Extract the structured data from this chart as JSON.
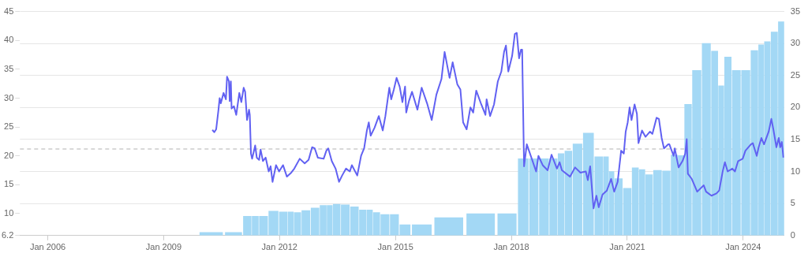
{
  "chart_data": {
    "type": "line",
    "xlim": [
      "2005-04-13",
      "2025-01-23"
    ],
    "xticks": [
      {
        "value": "2006-01-01",
        "label": "Jan 2006"
      },
      {
        "value": "2009-01-01",
        "label": "Jan 2009"
      },
      {
        "value": "2012-01-01",
        "label": "Jan 2012"
      },
      {
        "value": "2015-01-01",
        "label": "Jan 2015"
      },
      {
        "value": "2018-01-01",
        "label": "Jan 2018"
      },
      {
        "value": "2021-01-01",
        "label": "Jan 2021"
      },
      {
        "value": "2024-01-01",
        "label": "Jan 2024"
      }
    ],
    "ylim": [
      6.2,
      45
    ],
    "yticks": [
      6.2,
      10,
      15,
      20,
      25,
      30,
      35,
      40,
      45
    ],
    "y2lim": [
      0,
      35
    ],
    "y2ticks": [
      0,
      5,
      10,
      15,
      20,
      25,
      30,
      35
    ],
    "grid": "y",
    "marker": "none",
    "line_style": "solid",
    "ref_lines": [
      {
        "axis": "y",
        "value": 21.2,
        "color": "#cccccc",
        "line_style": "dashed"
      }
    ],
    "series": [
      {
        "type": "bar",
        "axis": "y2",
        "color": "#a3d8f5",
        "x": [
          "2010-03-26",
          "2010-11-26",
          "2011-03-15",
          "2011-05-12",
          "2011-07-28",
          "2011-11-04",
          "2012-02-14",
          "2012-04-17",
          "2012-06-11",
          "2012-09-06",
          "2012-12-03",
          "2013-02-25",
          "2013-04-17",
          "2013-06-18",
          "2013-09-14",
          "2013-12-10",
          "2014-03-04",
          "2014-05-05",
          "2014-06-29",
          "2014-09-21",
          "2014-12-25",
          "2015-03-19",
          "2015-08-04",
          "2016-05-05",
          "2017-04-02",
          "2017-12-25",
          "2018-05-05",
          "2018-07-28",
          "2018-11-07",
          "2019-02-10",
          "2019-04-17",
          "2019-06-18",
          "2019-09-14",
          "2019-12-28",
          "2020-04-21",
          "2020-06-22",
          "2020-07-28",
          "2020-10-05",
          "2021-01-05",
          "2021-03-22",
          "2021-05-20",
          "2021-07-21",
          "2021-10-13",
          "2022-01-08",
          "2022-03-26",
          "2022-05-23",
          "2022-07-24",
          "2022-10-16",
          "2023-01-23",
          "2023-04-13",
          "2023-06-07",
          "2023-08-04",
          "2023-10-27",
          "2024-01-27",
          "2024-04-24",
          "2024-06-22",
          "2024-08-12",
          "2024-10-24",
          "2024-12-28"
        ],
        "values": [
          0.5,
          0.5,
          3.0,
          3.0,
          3.0,
          3.8,
          3.7,
          3.7,
          3.6,
          3.9,
          4.3,
          4.7,
          4.7,
          4.9,
          4.8,
          4.5,
          4.0,
          4.0,
          3.6,
          3.3,
          3.3,
          1.7,
          1.7,
          2.8,
          3.4,
          3.4,
          12.0,
          12.0,
          12.0,
          12.0,
          12.8,
          13.2,
          14.3,
          16.0,
          12.3,
          12.3,
          10.0,
          8.9,
          7.4,
          10.6,
          10.3,
          9.5,
          10.2,
          10.1,
          12.6,
          12.5,
          20.5,
          25.8,
          30.0,
          28.8,
          23.4,
          27.9,
          25.8,
          25.8,
          28.9,
          29.8,
          30.3,
          31.8,
          33.4
        ]
      },
      {
        "axis": "y",
        "color": "#6161f2",
        "x": [
          "2010-04-06",
          "2010-04-24",
          "2010-05-12",
          "2010-06-03",
          "2010-06-14",
          "2010-06-25",
          "2010-07-21",
          "2010-08-12",
          "2010-08-23",
          "2010-09-10",
          "2010-09-17",
          "2010-09-28",
          "2010-10-05",
          "2010-10-27",
          "2010-11-18",
          "2010-12-17",
          "2011-01-05",
          "2011-01-27",
          "2011-02-10",
          "2011-02-28",
          "2011-03-19",
          "2011-03-26",
          "2011-04-06",
          "2011-04-17",
          "2011-05-16",
          "2011-05-31",
          "2011-06-22",
          "2011-07-06",
          "2011-07-28",
          "2011-08-23",
          "2011-09-21",
          "2011-10-09",
          "2011-10-27",
          "2011-11-29",
          "2011-12-28",
          "2012-02-03",
          "2012-03-11",
          "2012-04-21",
          "2012-05-20",
          "2012-07-10",
          "2012-08-26",
          "2012-10-02",
          "2012-11-04",
          "2012-11-29",
          "2012-12-28",
          "2013-02-21",
          "2013-03-19",
          "2013-04-06",
          "2013-05-09",
          "2013-06-14",
          "2013-07-17",
          "2013-08-15",
          "2013-09-21",
          "2013-10-27",
          "2013-11-15",
          "2014-01-05",
          "2014-02-10",
          "2014-03-11",
          "2014-04-06",
          "2014-04-24",
          "2014-05-12",
          "2014-06-18",
          "2014-07-28",
          "2014-09-03",
          "2014-09-28",
          "2014-11-04",
          "2014-11-22",
          "2014-12-17",
          "2015-01-12",
          "2015-02-10",
          "2015-03-08",
          "2015-04-02",
          "2015-04-13",
          "2015-05-09",
          "2015-06-07",
          "2015-07-28",
          "2015-09-06",
          "2015-10-27",
          "2015-12-10",
          "2016-01-23",
          "2016-03-11",
          "2016-04-10",
          "2016-05-27",
          "2016-06-25",
          "2016-08-08",
          "2016-09-06",
          "2016-10-02",
          "2016-11-04",
          "2016-12-10",
          "2017-01-05",
          "2017-02-03",
          "2017-03-19",
          "2017-05-01",
          "2017-05-12",
          "2017-06-14",
          "2017-07-21",
          "2017-08-26",
          "2017-09-28",
          "2017-10-24",
          "2017-11-11",
          "2017-12-03",
          "2018-01-08",
          "2018-02-03",
          "2018-02-21",
          "2018-03-15",
          "2018-04-02",
          "2018-04-13",
          "2018-05-01",
          "2018-05-27",
          "2018-07-13",
          "2018-08-23",
          "2018-09-14",
          "2018-10-24",
          "2018-12-10",
          "2019-01-16",
          "2019-03-08",
          "2019-04-02",
          "2019-04-24",
          "2019-07-10",
          "2019-08-26",
          "2019-10-16",
          "2019-12-06",
          "2019-12-25",
          "2020-01-16",
          "2020-02-17",
          "2020-03-15",
          "2020-04-06",
          "2020-05-12",
          "2020-06-22",
          "2020-08-01",
          "2020-08-30",
          "2020-10-02",
          "2020-11-04",
          "2020-11-29",
          "2020-12-17",
          "2021-01-05",
          "2021-01-23",
          "2021-02-10",
          "2021-03-11",
          "2021-04-02",
          "2021-04-17",
          "2021-05-20",
          "2021-06-22",
          "2021-08-04",
          "2021-08-26",
          "2021-10-05",
          "2021-10-27",
          "2021-11-22",
          "2021-12-14",
          "2022-01-23",
          "2022-02-03",
          "2022-03-15",
          "2022-03-26",
          "2022-05-01",
          "2022-06-07",
          "2022-07-03",
          "2022-07-17",
          "2022-07-28",
          "2022-09-03",
          "2022-10-24",
          "2022-12-25",
          "2023-01-16",
          "2023-03-08",
          "2023-04-24",
          "2023-05-20",
          "2023-06-22",
          "2023-07-13",
          "2023-08-08",
          "2023-09-21",
          "2023-10-16",
          "2023-11-15",
          "2023-12-28",
          "2024-01-23",
          "2024-03-15",
          "2024-04-02",
          "2024-05-09",
          "2024-05-27",
          "2024-06-22",
          "2024-07-17",
          "2024-08-30",
          "2024-09-24",
          "2024-10-13",
          "2024-11-11",
          "2024-12-03",
          "2024-12-17",
          "2025-01-01",
          "2025-01-16"
        ],
        "values": [
          24.5,
          24.1,
          24.6,
          28.0,
          30.0,
          29.1,
          30.9,
          29.8,
          33.7,
          32.9,
          29.5,
          32.9,
          28.2,
          28.6,
          27.1,
          30.9,
          29.3,
          31.8,
          31.1,
          26.2,
          28.0,
          27.1,
          20.4,
          19.5,
          21.8,
          19.7,
          19.3,
          21.1,
          19.1,
          19.7,
          17.3,
          18.2,
          15.5,
          18.4,
          17.3,
          18.4,
          16.4,
          17.1,
          17.8,
          19.5,
          18.7,
          19.3,
          21.5,
          21.3,
          19.7,
          19.5,
          20.9,
          21.3,
          19.1,
          17.8,
          15.5,
          16.6,
          17.8,
          17.3,
          18.4,
          16.6,
          20.0,
          21.3,
          24.4,
          25.8,
          23.5,
          24.9,
          26.9,
          24.4,
          26.9,
          31.8,
          29.8,
          31.5,
          33.5,
          32.0,
          29.3,
          32.0,
          27.5,
          29.5,
          31.1,
          28.0,
          31.8,
          29.1,
          26.2,
          30.6,
          33.3,
          38.0,
          33.5,
          36.2,
          32.4,
          31.5,
          25.8,
          24.6,
          28.4,
          27.5,
          31.3,
          29.1,
          27.1,
          29.8,
          26.9,
          28.9,
          32.9,
          34.6,
          38.0,
          39.1,
          34.6,
          37.3,
          41.1,
          41.3,
          36.9,
          38.4,
          38.4,
          18.2,
          22.0,
          19.5,
          17.3,
          20.0,
          18.4,
          17.5,
          20.2,
          17.8,
          18.9,
          17.5,
          16.4,
          18.0,
          17.1,
          17.3,
          15.8,
          18.2,
          10.9,
          13.1,
          11.1,
          13.3,
          14.0,
          16.0,
          13.8,
          15.5,
          20.9,
          20.4,
          24.2,
          25.8,
          28.4,
          26.2,
          28.9,
          27.3,
          22.2,
          24.4,
          23.3,
          24.2,
          23.8,
          26.6,
          26.4,
          23.1,
          21.3,
          22.0,
          22.0,
          20.0,
          21.3,
          18.0,
          19.1,
          20.4,
          22.9,
          16.9,
          16.0,
          13.8,
          14.9,
          13.8,
          13.1,
          13.5,
          14.0,
          17.3,
          18.9,
          17.3,
          17.8,
          17.3,
          19.1,
          19.5,
          20.9,
          22.0,
          22.2,
          20.0,
          21.5,
          23.1,
          22.0,
          24.2,
          26.4,
          24.6,
          21.5,
          23.1,
          21.5,
          22.4,
          19.7
        ]
      }
    ]
  }
}
